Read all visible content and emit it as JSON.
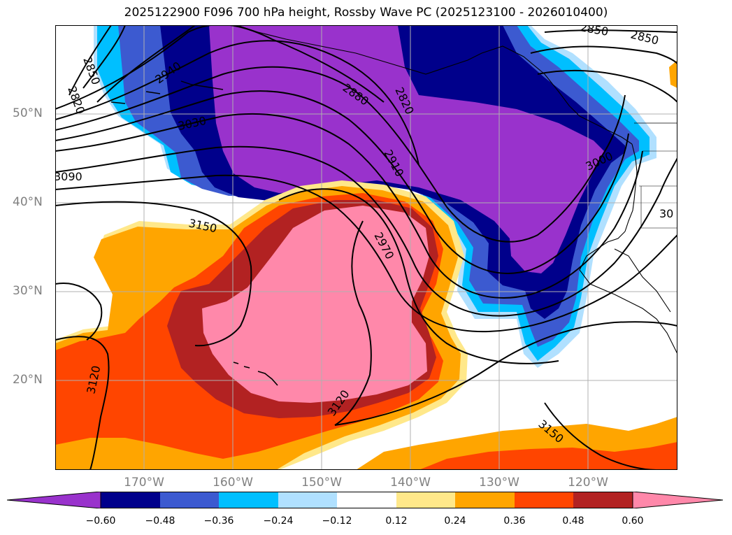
{
  "title": "2025122900 F096 700 hPa height, Rossby Wave PC (2025123100 - 2026010400)",
  "lat_labels": [
    "50°N",
    "40°N",
    "30°N",
    "20°N"
  ],
  "lon_labels": [
    "170°W",
    "160°W",
    "150°W",
    "140°W",
    "130°W",
    "120°W"
  ],
  "contour_labels": [
    "2820",
    "2850",
    "2880",
    "2910",
    "2940",
    "2970",
    "3000",
    "3030",
    "3090",
    "3120",
    "3120",
    "3150",
    "3150",
    "2850",
    "2820",
    "30",
    "2850"
  ],
  "colorbar": {
    "ticks": [
      "−0.60",
      "−0.48",
      "−0.36",
      "−0.24",
      "−0.12",
      "0.12",
      "0.24",
      "0.36",
      "0.48",
      "0.60"
    ],
    "colors": [
      "#9932cc",
      "#00008b",
      "#3c5ad0",
      "#00bfff",
      "#b0e0ff",
      "#ffffff",
      "#ffe88a",
      "#ffa500",
      "#ff4500",
      "#b22222",
      "#ff88aa"
    ]
  },
  "palette": {
    "neg_strong": "#9932cc",
    "neg_dark": "#00008b",
    "neg_mid": "#3c5ad0",
    "neg_light": "#00bfff",
    "neg_pale": "#b0e0ff",
    "pos_pale": "#ffe88a",
    "pos_light": "#ffa500",
    "pos_mid": "#ff4500",
    "pos_dark": "#b22222",
    "pos_strong": "#ff88aa"
  }
}
